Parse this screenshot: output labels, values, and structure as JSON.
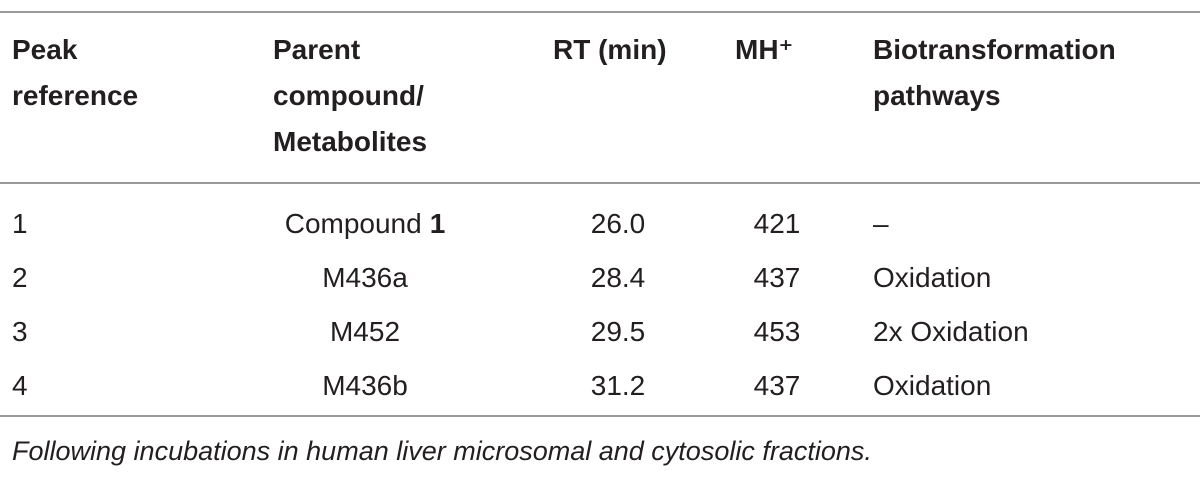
{
  "table": {
    "header": [
      "Peak reference",
      "Parent compound/ Metabolites",
      "RT (min)",
      "MH⁺",
      "Biotransformation pathways"
    ],
    "rows": [
      [
        "1",
        {
          "text": "Compound",
          "bold": "1"
        },
        "26.0",
        "421",
        "–"
      ],
      [
        "2",
        "M436a",
        "28.4",
        "437",
        "Oxidation"
      ],
      [
        "3",
        "M452",
        "29.5",
        "453",
        "2x Oxidation"
      ],
      [
        "4",
        "M436b",
        "31.2",
        "437",
        "Oxidation"
      ]
    ],
    "footnote": "Following incubations in human liver microsomal and cytosolic fractions."
  }
}
